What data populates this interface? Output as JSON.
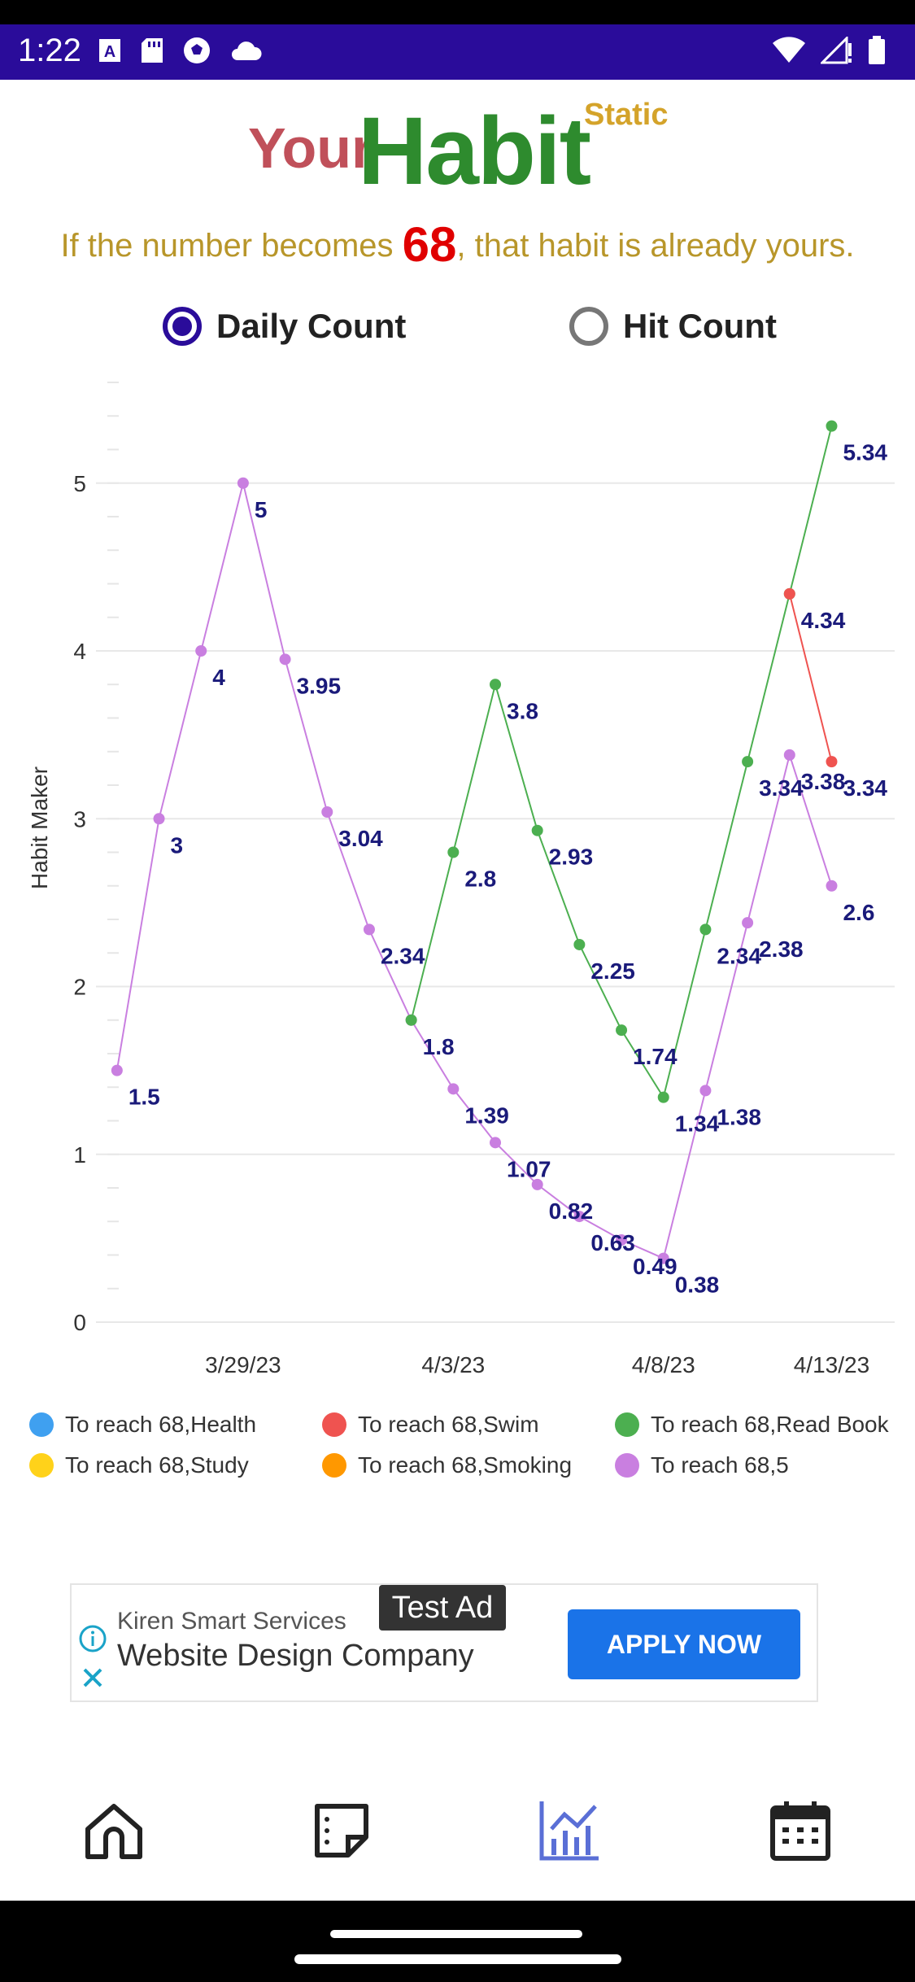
{
  "status_bar": {
    "time": "1:22",
    "icons_left": [
      "keyboard-a-icon",
      "sd-card-icon",
      "soccer-ball-icon",
      "cloud-icon"
    ],
    "icons_right": [
      "wifi-icon",
      "signal-icon",
      "battery-icon"
    ]
  },
  "header": {
    "title_your": "Your",
    "title_habit": "Habit",
    "title_static": "Static",
    "tagline_before": "If the number becomes ",
    "tagline_number": "68",
    "tagline_after": ", that habit is already yours."
  },
  "mode": {
    "options": [
      {
        "label": "Daily Count",
        "selected": true
      },
      {
        "label": "Hit Count",
        "selected": false
      }
    ]
  },
  "chart_data": {
    "type": "line",
    "ylabel": "Habit Maker",
    "xlabel": "",
    "ylim": [
      0,
      5.6
    ],
    "y_ticks": [
      "0",
      "1",
      "2",
      "3",
      "4",
      "5"
    ],
    "x_tick_labels": [
      {
        "label": "3/29/23",
        "day_index": 3
      },
      {
        "label": "4/3/23",
        "day_index": 8
      },
      {
        "label": "4/8/23",
        "day_index": 13
      },
      {
        "label": "4/13/23",
        "day_index": 17
      }
    ],
    "day_range": [
      -0.5,
      18.5
    ],
    "series": [
      {
        "name": "To reach 68,5",
        "color": "#c97fe0",
        "points": [
          {
            "x": 0,
            "y": 1.5,
            "label": "1.5"
          },
          {
            "x": 1,
            "y": 3,
            "label": "3"
          },
          {
            "x": 2,
            "y": 4,
            "label": "4"
          },
          {
            "x": 3,
            "y": 5,
            "label": "5"
          },
          {
            "x": 4,
            "y": 3.95,
            "label": "3.95"
          },
          {
            "x": 5,
            "y": 3.04,
            "label": "3.04"
          },
          {
            "x": 6,
            "y": 2.34,
            "label": "2.34"
          },
          {
            "x": 7,
            "y": 1.8,
            "label": "1.8"
          },
          {
            "x": 8,
            "y": 1.39,
            "label": "1.39"
          },
          {
            "x": 9,
            "y": 1.07,
            "label": "1.07"
          },
          {
            "x": 10,
            "y": 0.82,
            "label": "0.82"
          },
          {
            "x": 11,
            "y": 0.63,
            "label": "0.63"
          },
          {
            "x": 12,
            "y": 0.49,
            "label": "0.49"
          },
          {
            "x": 13,
            "y": 0.38,
            "label": "0.38"
          },
          {
            "x": 14,
            "y": 1.38,
            "label": "1.38"
          },
          {
            "x": 15,
            "y": 2.38,
            "label": "2.38"
          },
          {
            "x": 16,
            "y": 3.38,
            "label": "3.38"
          },
          {
            "x": 17,
            "y": 2.6,
            "label": "2.6"
          }
        ]
      },
      {
        "name": "To reach 68,Read Book",
        "color": "#4caf50",
        "points": [
          {
            "x": 7,
            "y": 1.8,
            "label": ""
          },
          {
            "x": 8,
            "y": 2.8,
            "label": "2.8"
          },
          {
            "x": 9,
            "y": 3.8,
            "label": "3.8"
          },
          {
            "x": 10,
            "y": 2.93,
            "label": "2.93"
          },
          {
            "x": 11,
            "y": 2.25,
            "label": "2.25"
          },
          {
            "x": 12,
            "y": 1.74,
            "label": "1.74"
          },
          {
            "x": 13,
            "y": 1.34,
            "label": "1.34"
          },
          {
            "x": 14,
            "y": 2.34,
            "label": "2.34"
          },
          {
            "x": 15,
            "y": 3.34,
            "label": "3.34"
          },
          {
            "x": 16,
            "y": 4.34,
            "label": "4.34"
          },
          {
            "x": 17,
            "y": 5.34,
            "label": "5.34"
          }
        ]
      },
      {
        "name": "To reach 68,Swim",
        "color": "#ef5350",
        "points": [
          {
            "x": 16,
            "y": 4.34,
            "label": ""
          },
          {
            "x": 17,
            "y": 3.34,
            "label": "3.34"
          }
        ]
      },
      {
        "name": "To reach 68,Health",
        "color": "#3fa0f0",
        "points": []
      },
      {
        "name": "To reach 68,Study",
        "color": "#ffd21a",
        "points": []
      },
      {
        "name": "To reach 68,Smoking",
        "color": "#ff9800",
        "points": []
      }
    ]
  },
  "legend": {
    "items": [
      {
        "label": "To reach 68,Health",
        "color": "#3fa0f0"
      },
      {
        "label": "To reach 68,Swim",
        "color": "#ef5350"
      },
      {
        "label": "To reach 68,Read Book",
        "color": "#4caf50"
      },
      {
        "label": "To reach 68,Study",
        "color": "#ffd21a"
      },
      {
        "label": "To reach 68,Smoking",
        "color": "#ff9800"
      },
      {
        "label": "To reach 68,5",
        "color": "#c97fe0"
      }
    ]
  },
  "ad": {
    "badge": "Test Ad",
    "advertiser": "Kiren Smart Services",
    "headline": "Website Design Company",
    "cta": "APPLY NOW"
  },
  "bottom_nav": {
    "items": [
      {
        "name": "home-icon",
        "active": false
      },
      {
        "name": "notes-icon",
        "active": false
      },
      {
        "name": "chart-icon",
        "active": true
      },
      {
        "name": "calendar-icon",
        "active": false
      }
    ]
  }
}
